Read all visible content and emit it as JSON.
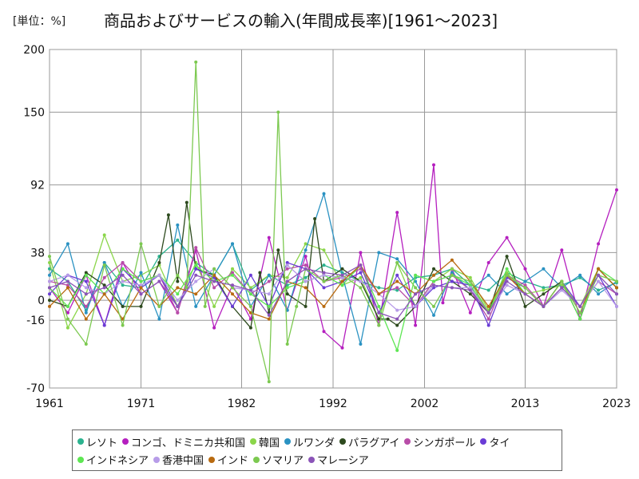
{
  "unit_label": "[単位：%]",
  "title": "商品およびサービスの輸入(年間成長率)[1961～2023]",
  "chart_data": {
    "type": "line",
    "title": "商品およびサービスの輸入(年間成長率)[1961～2023]",
    "unit": "[単位：%]",
    "xlabel": "",
    "ylabel": "",
    "xlim": [
      1961,
      2023
    ],
    "ylim": [
      -70,
      200
    ],
    "x_ticks": [
      1961,
      1971,
      1982,
      1992,
      2002,
      2013,
      2023
    ],
    "y_ticks": [
      200,
      150,
      92,
      38,
      0,
      -16,
      -70
    ],
    "grid": true,
    "legend_position": "bottom",
    "series": [
      {
        "name": "レソト",
        "color": "#2bb38f",
        "x": [
          1961,
          1963,
          1965,
          1967,
          1969,
          1971,
          1973,
          1975,
          1977,
          1979,
          1981,
          1983,
          1985,
          1987,
          1989,
          1991,
          1993,
          1995,
          1997,
          1999,
          2001,
          2003,
          2005,
          2007,
          2009,
          2011,
          2013,
          2015,
          2017,
          2019,
          2021,
          2023
        ],
        "y": [
          25,
          15,
          -8,
          30,
          12,
          10,
          35,
          48,
          30,
          20,
          45,
          8,
          20,
          12,
          18,
          28,
          22,
          15,
          10,
          8,
          18,
          20,
          25,
          12,
          8,
          22,
          15,
          10,
          12,
          18,
          8,
          14
        ]
      },
      {
        "name": "コンゴ、ドミニカ共和国",
        "color": "#b51fbf",
        "x": [
          1961,
          1963,
          1965,
          1967,
          1969,
          1971,
          1973,
          1975,
          1977,
          1979,
          1981,
          1983,
          1985,
          1987,
          1989,
          1991,
          1993,
          1995,
          1997,
          1999,
          2001,
          2003,
          2004,
          2005,
          2007,
          2009,
          2011,
          2013,
          2015,
          2017,
          2019,
          2021,
          2023
        ],
        "y": [
          10,
          -10,
          20,
          -20,
          30,
          5,
          15,
          -10,
          40,
          -22,
          12,
          -15,
          50,
          -8,
          35,
          -25,
          -38,
          38,
          -20,
          70,
          -20,
          108,
          -2,
          25,
          -10,
          30,
          50,
          25,
          -5,
          40,
          -15,
          45,
          88
        ]
      },
      {
        "name": "韓国",
        "color": "#8bd64a",
        "x": [
          1961,
          1963,
          1965,
          1967,
          1969,
          1971,
          1973,
          1975,
          1977,
          1979,
          1981,
          1983,
          1985,
          1987,
          1989,
          1991,
          1993,
          1995,
          1997,
          1999,
          2001,
          2003,
          2005,
          2007,
          2009,
          2011,
          2013,
          2015,
          2017,
          2019,
          2021,
          2023
        ],
        "y": [
          30,
          -22,
          5,
          52,
          15,
          20,
          28,
          -5,
          30,
          -5,
          25,
          10,
          20,
          18,
          45,
          40,
          12,
          18,
          -15,
          30,
          -5,
          15,
          25,
          18,
          -8,
          22,
          5,
          8,
          12,
          -5,
          25,
          10
        ]
      },
      {
        "name": "ルワンダ",
        "color": "#2a92c2",
        "x": [
          1961,
          1963,
          1965,
          1967,
          1969,
          1971,
          1973,
          1975,
          1977,
          1979,
          1981,
          1983,
          1985,
          1987,
          1989,
          1991,
          1993,
          1995,
          1997,
          1999,
          2001,
          2003,
          2005,
          2007,
          2009,
          2011,
          2013,
          2015,
          2017,
          2019,
          2021,
          2023
        ],
        "y": [
          20,
          45,
          -10,
          30,
          -5,
          22,
          -15,
          60,
          -5,
          20,
          45,
          -5,
          20,
          -8,
          40,
          85,
          20,
          -35,
          38,
          33,
          15,
          -12,
          22,
          8,
          20,
          5,
          15,
          25,
          10,
          20,
          5,
          15
        ]
      },
      {
        "name": "パラグアイ",
        "color": "#2d4a1e",
        "x": [
          1961,
          1963,
          1965,
          1967,
          1969,
          1971,
          1973,
          1974,
          1975,
          1976,
          1977,
          1979,
          1981,
          1983,
          1984,
          1985,
          1986,
          1987,
          1989,
          1990,
          1991,
          1993,
          1995,
          1997,
          1998,
          1999,
          2001,
          2003,
          2005,
          2007,
          2009,
          2011,
          2013,
          2015,
          2017,
          2019,
          2021,
          2023
        ],
        "y": [
          0,
          -5,
          22,
          12,
          -5,
          -5,
          30,
          68,
          15,
          78,
          25,
          20,
          -5,
          -22,
          22,
          -10,
          40,
          5,
          -5,
          65,
          15,
          25,
          15,
          -15,
          -15,
          -20,
          -5,
          25,
          15,
          5,
          -10,
          35,
          -5,
          5,
          15,
          -15,
          25,
          10
        ]
      },
      {
        "name": "シンガポール",
        "color": "#b84da8",
        "x": [
          1961,
          1963,
          1965,
          1967,
          1969,
          1971,
          1973,
          1975,
          1977,
          1979,
          1981,
          1983,
          1985,
          1987,
          1989,
          1991,
          1993,
          1995,
          1997,
          1999,
          2001,
          2003,
          2005,
          2007,
          2009,
          2011,
          2013,
          2015,
          2017,
          2019,
          2021,
          2023
        ],
        "y": [
          15,
          12,
          -5,
          18,
          30,
          15,
          20,
          -10,
          42,
          10,
          22,
          5,
          15,
          25,
          28,
          15,
          18,
          25,
          5,
          10,
          -5,
          15,
          20,
          8,
          -15,
          20,
          12,
          -5,
          10,
          -5,
          15,
          5
        ]
      },
      {
        "name": "タイ",
        "color": "#6a3cd6",
        "x": [
          1961,
          1963,
          1965,
          1967,
          1969,
          1971,
          1973,
          1975,
          1977,
          1979,
          1981,
          1983,
          1985,
          1987,
          1989,
          1991,
          1993,
          1995,
          1997,
          1999,
          2001,
          2003,
          2005,
          2007,
          2009,
          2011,
          2013,
          2015,
          2017,
          2019,
          2021,
          2023
        ],
        "y": [
          5,
          20,
          15,
          -20,
          25,
          10,
          20,
          -5,
          25,
          18,
          -5,
          20,
          -5,
          30,
          25,
          10,
          15,
          22,
          -10,
          20,
          -5,
          10,
          15,
          12,
          -20,
          18,
          10,
          -5,
          15,
          -5,
          20,
          -5
        ]
      },
      {
        "name": "インドネシア",
        "color": "#5ee653",
        "x": [
          1961,
          1963,
          1965,
          1967,
          1969,
          1971,
          1973,
          1975,
          1977,
          1979,
          1981,
          1983,
          1985,
          1987,
          1989,
          1991,
          1993,
          1995,
          1997,
          1999,
          2001,
          2003,
          2005,
          2007,
          2009,
          2011,
          2013,
          2015,
          2017,
          2019,
          2021,
          2023
        ],
        "y": [
          10,
          -5,
          20,
          5,
          25,
          15,
          20,
          5,
          28,
          15,
          20,
          5,
          -5,
          10,
          15,
          20,
          12,
          28,
          -5,
          -40,
          20,
          15,
          20,
          12,
          -10,
          25,
          5,
          -5,
          15,
          -15,
          25,
          15
        ]
      },
      {
        "name": "香港中国",
        "color": "#b79ce8",
        "x": [
          1961,
          1963,
          1965,
          1967,
          1969,
          1971,
          1973,
          1975,
          1977,
          1979,
          1981,
          1983,
          1985,
          1987,
          1989,
          1991,
          1993,
          1995,
          1997,
          1999,
          2001,
          2003,
          2005,
          2007,
          2009,
          2011,
          2013,
          2015,
          2017,
          2019,
          2021,
          2023
        ],
        "y": [
          15,
          20,
          10,
          5,
          15,
          12,
          20,
          0,
          15,
          25,
          10,
          8,
          5,
          28,
          15,
          20,
          18,
          15,
          5,
          -8,
          -5,
          12,
          10,
          10,
          -10,
          12,
          5,
          -5,
          8,
          -5,
          15,
          -5
        ]
      },
      {
        "name": "インド",
        "color": "#b86a10",
        "x": [
          1961,
          1963,
          1965,
          1967,
          1969,
          1971,
          1973,
          1975,
          1977,
          1979,
          1981,
          1983,
          1985,
          1987,
          1989,
          1991,
          1993,
          1995,
          1997,
          1999,
          2001,
          2003,
          2005,
          2007,
          2009,
          2011,
          2013,
          2015,
          2017,
          2019,
          2021,
          2023
        ],
        "y": [
          -5,
          10,
          -15,
          5,
          -15,
          10,
          -5,
          10,
          5,
          20,
          5,
          -10,
          -15,
          15,
          10,
          -5,
          15,
          28,
          5,
          15,
          5,
          20,
          32,
          15,
          -5,
          20,
          5,
          -5,
          15,
          -10,
          25,
          10
        ]
      },
      {
        "name": "ソマリア",
        "color": "#7cc950",
        "x": [
          1961,
          1963,
          1965,
          1967,
          1969,
          1971,
          1973,
          1975,
          1976,
          1977,
          1978,
          1979,
          1981,
          1983,
          1985,
          1986,
          1987,
          1988,
          1989,
          1991,
          1993,
          1995,
          1997,
          1999,
          2001,
          2003,
          2005,
          2007,
          2009,
          2011,
          2013,
          2015,
          2017,
          2019,
          2021,
          2023
        ],
        "y": [
          35,
          -15,
          -35,
          28,
          -20,
          45,
          -5,
          20,
          10,
          190,
          -5,
          25,
          10,
          -5,
          -65,
          150,
          -35,
          -5,
          25,
          15,
          20,
          10,
          -20,
          30,
          10,
          -5,
          20,
          15,
          -10,
          20,
          10,
          -5,
          15,
          -10,
          20,
          15
        ]
      },
      {
        "name": "マレーシア",
        "color": "#8b54b8",
        "x": [
          1961,
          1963,
          1965,
          1967,
          1969,
          1971,
          1973,
          1975,
          1977,
          1979,
          1981,
          1983,
          1985,
          1987,
          1989,
          1991,
          1993,
          1995,
          1997,
          1999,
          2001,
          2003,
          2005,
          2007,
          2009,
          2011,
          2013,
          2015,
          2017,
          2019,
          2021,
          2023
        ],
        "y": [
          10,
          15,
          5,
          10,
          20,
          5,
          15,
          -5,
          20,
          15,
          12,
          8,
          -12,
          15,
          25,
          22,
          20,
          28,
          -10,
          -15,
          5,
          12,
          10,
          8,
          -10,
          15,
          5,
          -5,
          10,
          -5,
          20,
          5
        ]
      }
    ]
  }
}
